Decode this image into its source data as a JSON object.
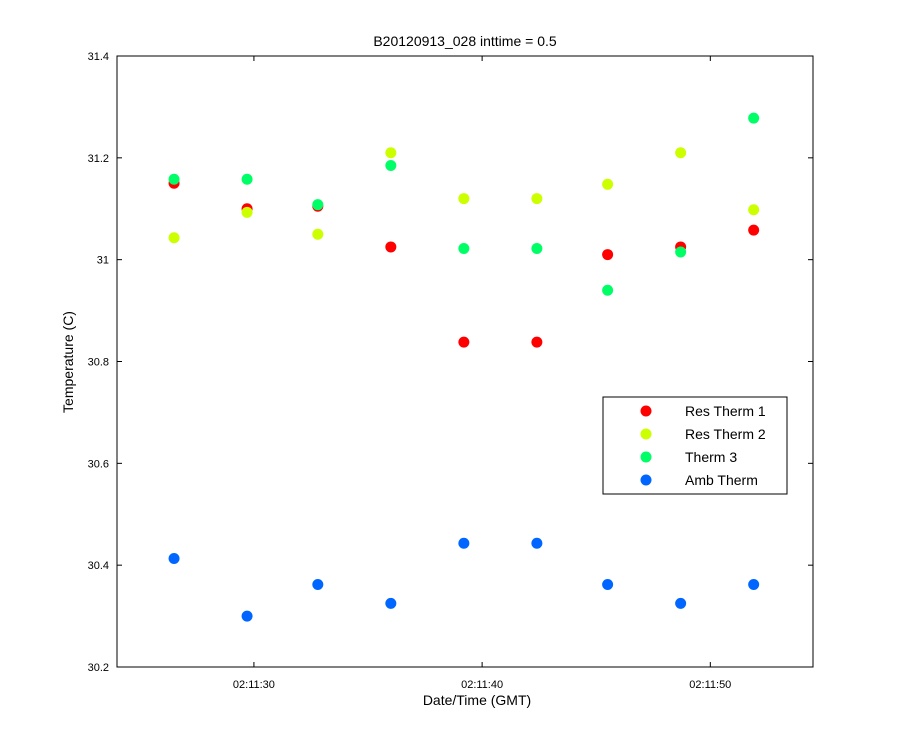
{
  "chart_data": {
    "type": "scatter",
    "title": "B20120913_028 inttime = 0.5",
    "xlabel": "Date/Time (GMT)",
    "ylabel": "Temperature (C)",
    "x": [
      "02:11:26.5",
      "02:11:29.7",
      "02:11:32.8",
      "02:11:36.0",
      "02:11:39.2",
      "02:11:42.4",
      "02:11:45.5",
      "02:11:48.7",
      "02:11:51.9"
    ],
    "xlim": [
      "02:11:24",
      "02:11:54.5"
    ],
    "ylim": [
      30.2,
      31.4
    ],
    "x_ticks": [
      "02:11:30",
      "02:11:40",
      "02:11:50"
    ],
    "y_ticks": [
      "30.2",
      "30.4",
      "30.6",
      "30.8",
      "31",
      "31.2",
      "31.4"
    ],
    "series": [
      {
        "name": "Res Therm 1",
        "color": "#ff0000",
        "values": [
          31.15,
          31.1,
          31.105,
          31.025,
          30.838,
          30.838,
          31.01,
          31.025,
          31.058
        ]
      },
      {
        "name": "Res Therm 2",
        "color": "#ccff00",
        "values": [
          31.043,
          31.093,
          31.05,
          31.21,
          31.12,
          31.12,
          31.148,
          31.21,
          31.098
        ]
      },
      {
        "name": "Therm 3",
        "color": "#00ff66",
        "values": [
          31.158,
          31.158,
          31.108,
          31.185,
          31.022,
          31.022,
          30.94,
          31.015,
          31.278
        ]
      },
      {
        "name": "Amb Therm",
        "color": "#0066ff",
        "values": [
          30.413,
          30.3,
          30.362,
          30.325,
          30.443,
          30.443,
          30.362,
          30.325,
          30.362
        ]
      }
    ],
    "legend_position": "right",
    "grid": false
  }
}
